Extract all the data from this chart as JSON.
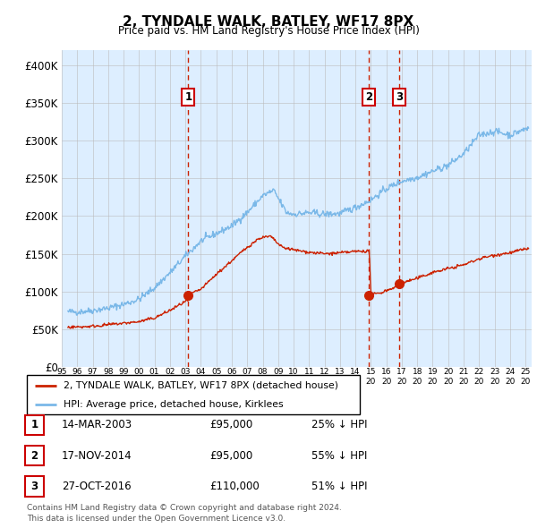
{
  "title": "2, TYNDALE WALK, BATLEY, WF17 8PX",
  "subtitle": "Price paid vs. HM Land Registry's House Price Index (HPI)",
  "background_color": "#ffffff",
  "plot_bg_color": "#ddeeff",
  "ylim": [
    0,
    420000
  ],
  "yticks": [
    0,
    50000,
    100000,
    150000,
    200000,
    250000,
    300000,
    350000,
    400000
  ],
  "ytick_labels": [
    "£0",
    "£50K",
    "£100K",
    "£150K",
    "£200K",
    "£250K",
    "£300K",
    "£350K",
    "£400K"
  ],
  "hpi_color": "#7ab8e8",
  "property_color": "#cc2200",
  "sale_marker_color": "#cc2200",
  "dashed_line_color": "#cc2200",
  "grid_color": "#bbbbbb",
  "sale_events": [
    {
      "label": "1",
      "date_num": 2003.19,
      "price": 95000,
      "date_str": "14-MAR-2003",
      "price_str": "£95,000",
      "pct": "25% ↓ HPI"
    },
    {
      "label": "2",
      "date_num": 2014.88,
      "price": 95000,
      "date_str": "17-NOV-2014",
      "price_str": "£95,000",
      "pct": "55% ↓ HPI"
    },
    {
      "label": "3",
      "date_num": 2016.82,
      "price": 110000,
      "date_str": "27-OCT-2016",
      "price_str": "£110,000",
      "pct": "51% ↓ HPI"
    }
  ],
  "legend_property": "2, TYNDALE WALK, BATLEY, WF17 8PX (detached house)",
  "legend_hpi": "HPI: Average price, detached house, Kirklees",
  "footer_line1": "Contains HM Land Registry data © Crown copyright and database right 2024.",
  "footer_line2": "This data is licensed under the Open Government Licence v3.0.",
  "xstart": 1995.3,
  "xend": 2025.4
}
